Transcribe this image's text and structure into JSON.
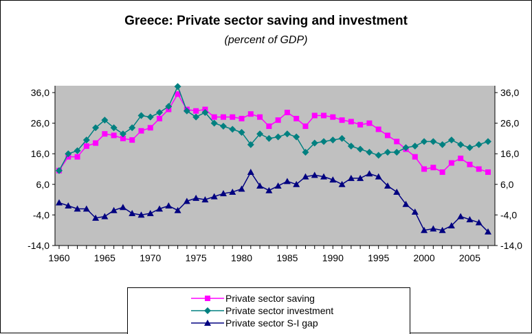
{
  "chart_data": {
    "type": "line",
    "title": "Greece: Private sector saving and investment",
    "subtitle": "(percent of GDP)",
    "xlabel": "",
    "ylabel": "",
    "ylim": [
      -14,
      36
    ],
    "yticks": [
      "36,0",
      "26,0",
      "16,0",
      "6,0",
      "-4,0",
      "-14,0"
    ],
    "xticks": [
      "1960",
      "1965",
      "1970",
      "1975",
      "1980",
      "1985",
      "1990",
      "1995",
      "2000",
      "2005"
    ],
    "grid": false,
    "legend_position": "bottom",
    "colors": {
      "plot_background": "#C0C0C0",
      "saving": "#FF00FF",
      "investment": "#008080",
      "gap": "#000080"
    },
    "x": [
      1960,
      1961,
      1962,
      1963,
      1964,
      1965,
      1966,
      1967,
      1968,
      1969,
      1970,
      1971,
      1972,
      1973,
      1974,
      1975,
      1976,
      1977,
      1978,
      1979,
      1980,
      1981,
      1982,
      1983,
      1984,
      1985,
      1986,
      1987,
      1988,
      1989,
      1990,
      1991,
      1992,
      1993,
      1994,
      1995,
      1996,
      1997,
      1998,
      1999,
      2000,
      2001,
      2002,
      2003,
      2004,
      2005,
      2006,
      2007
    ],
    "series": [
      {
        "name": "Private sector saving",
        "marker": "square",
        "values": [
          10.5,
          15.0,
          15.0,
          18.5,
          19.5,
          22.5,
          22.0,
          21.0,
          20.5,
          23.5,
          24.5,
          27.5,
          30.5,
          35.5,
          30.5,
          30.0,
          30.5,
          28.0,
          28.0,
          28.0,
          27.5,
          29.0,
          28.0,
          25.0,
          27.0,
          29.5,
          27.5,
          25.0,
          28.5,
          28.5,
          28.0,
          27.0,
          26.5,
          25.5,
          26.0,
          24.0,
          22.0,
          20.0,
          17.5,
          15.0,
          11.0,
          11.5,
          10.0,
          13.0,
          14.5,
          12.5,
          11.0,
          10.0
        ]
      },
      {
        "name": "Private sector investment",
        "marker": "diamond",
        "values": [
          10.5,
          16.0,
          17.0,
          20.5,
          24.5,
          27.0,
          24.5,
          22.5,
          24.5,
          28.5,
          28.0,
          29.5,
          31.5,
          38.0,
          30.0,
          28.0,
          29.5,
          26.0,
          25.0,
          24.0,
          23.0,
          19.0,
          22.5,
          21.0,
          21.5,
          22.5,
          21.5,
          16.5,
          19.5,
          20.0,
          20.5,
          21.0,
          18.5,
          17.5,
          16.5,
          15.5,
          16.5,
          16.5,
          18.0,
          18.5,
          20.0,
          20.0,
          19.0,
          20.5,
          19.0,
          18.0,
          19.0,
          20.0
        ]
      },
      {
        "name": "Private sector S-I gap",
        "marker": "triangle",
        "values": [
          0.0,
          -1.0,
          -2.0,
          -2.0,
          -5.0,
          -4.5,
          -2.5,
          -1.5,
          -3.5,
          -4.0,
          -3.5,
          -2.0,
          -1.0,
          -2.5,
          0.5,
          1.5,
          1.0,
          2.0,
          3.0,
          3.5,
          4.5,
          10.0,
          5.5,
          4.0,
          5.5,
          7.0,
          6.0,
          8.5,
          9.0,
          8.5,
          7.5,
          6.0,
          8.0,
          8.0,
          9.5,
          8.5,
          5.5,
          3.5,
          -0.5,
          -3.0,
          -9.0,
          -8.5,
          -9.0,
          -7.5,
          -4.5,
          -5.5,
          -6.5,
          -9.5
        ]
      }
    ]
  }
}
